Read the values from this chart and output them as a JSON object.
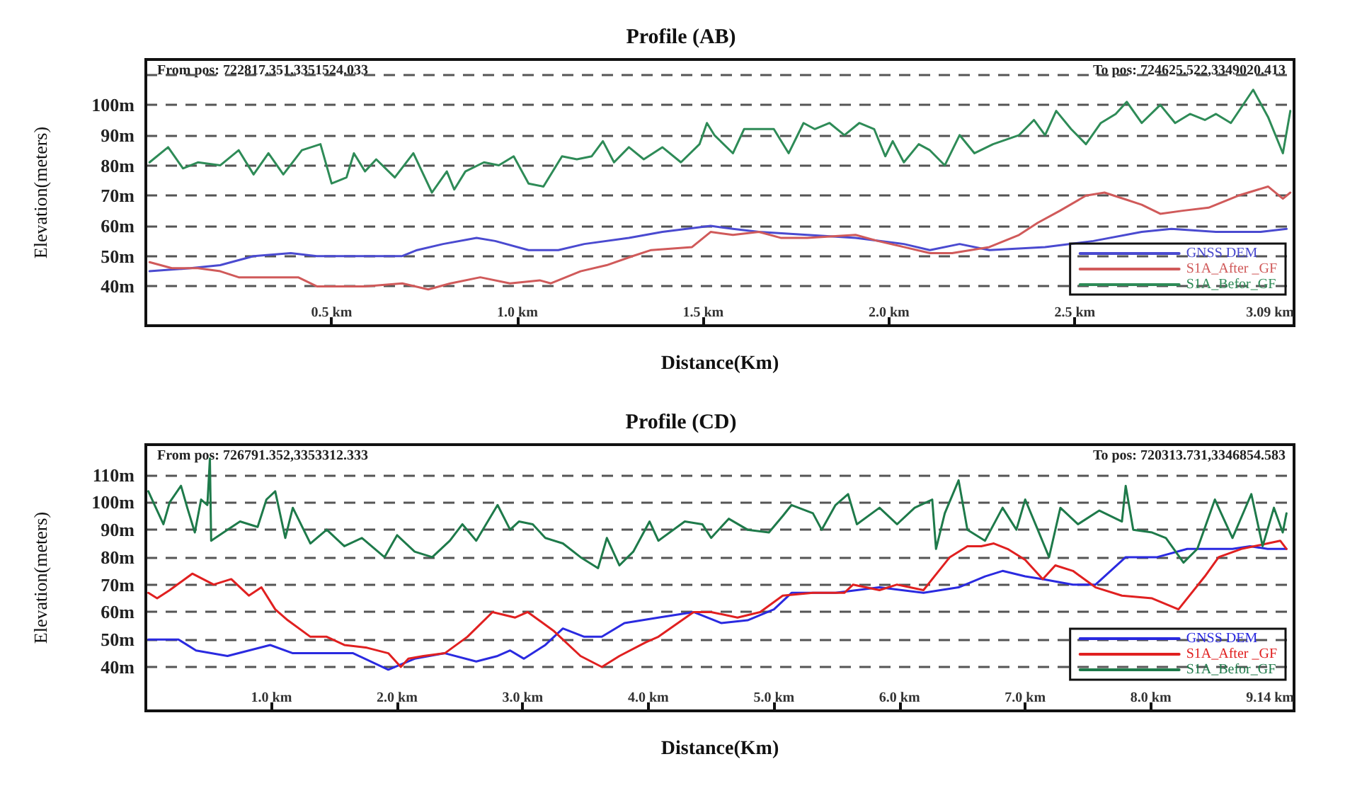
{
  "chart_data": [
    {
      "type": "line",
      "title": "Profile (AB)",
      "xlabel": "Distance(Km)",
      "ylabel": "Elevation(meters)",
      "annotations": [
        "From pos: 722817.351,3351524.033",
        "To pos: 724625.522,3349020.413"
      ],
      "xlim": [
        0,
        3.09
      ],
      "xticks": [
        {
          "value": 0.5,
          "label": "0.5 km"
        },
        {
          "value": 1.0,
          "label": "1.0 km"
        },
        {
          "value": 1.5,
          "label": "1.5 km"
        },
        {
          "value": 2.0,
          "label": "2.0 km"
        },
        {
          "value": 2.5,
          "label": "2.5 km"
        },
        {
          "value": 3.09,
          "label": "3.09 km"
        }
      ],
      "ylim": [
        27,
        115
      ],
      "yticks": [
        {
          "value": 40,
          "label": "40m"
        },
        {
          "value": 50,
          "label": "50m"
        },
        {
          "value": 60,
          "label": "60m"
        },
        {
          "value": 70,
          "label": "70m"
        },
        {
          "value": 80,
          "label": "80m"
        },
        {
          "value": 90,
          "label": "90m"
        },
        {
          "value": 100,
          "label": "100m"
        },
        {
          "value": 110,
          "label": null
        }
      ],
      "grid": "y",
      "legend": "bottom right",
      "series": [
        {
          "name": "GNSS DEM",
          "color": "#4a4ad0",
          "x": [
            0.01,
            0.12,
            0.2,
            0.29,
            0.39,
            0.46,
            0.59,
            0.69,
            0.73,
            0.8,
            0.89,
            0.94,
            1.03,
            1.11,
            1.18,
            1.3,
            1.39,
            1.52,
            1.58,
            1.65,
            1.78,
            1.91,
            2.04,
            2.11,
            2.19,
            2.27,
            2.42,
            2.55,
            2.68,
            2.76,
            2.88,
            3.0,
            3.07
          ],
          "values": [
            45,
            46,
            47,
            50,
            51,
            50,
            50,
            50,
            52,
            54,
            56,
            55,
            52,
            52,
            54,
            56,
            58,
            60,
            59,
            58,
            57,
            56,
            54,
            52,
            54,
            52,
            53,
            55,
            58,
            59,
            58,
            58,
            59
          ]
        },
        {
          "name": "S1A_After _GF",
          "color": "#d05a5a",
          "x": [
            0.01,
            0.07,
            0.14,
            0.2,
            0.25,
            0.33,
            0.41,
            0.46,
            0.59,
            0.69,
            0.76,
            0.82,
            0.9,
            0.98,
            1.06,
            1.09,
            1.17,
            1.24,
            1.31,
            1.36,
            1.47,
            1.52,
            1.58,
            1.65,
            1.71,
            1.78,
            1.91,
            1.97,
            2.04,
            2.11,
            2.17,
            2.27,
            2.35,
            2.4,
            2.46,
            2.53,
            2.58,
            2.63,
            2.68,
            2.73,
            2.79,
            2.86,
            2.94,
            3.02,
            3.06,
            3.08
          ],
          "values": [
            48,
            46,
            46,
            45,
            43,
            43,
            43,
            40,
            40,
            41,
            39,
            41,
            43,
            41,
            42,
            41,
            45,
            47,
            50,
            52,
            53,
            58,
            57,
            58,
            56,
            56,
            57,
            55,
            53,
            51,
            51,
            53,
            57,
            61,
            65,
            70,
            71,
            69,
            67,
            64,
            65,
            66,
            70,
            73,
            69,
            71
          ]
        },
        {
          "name": "S1A_Befor_GF",
          "color": "#2e8b57",
          "x": [
            0.01,
            0.06,
            0.1,
            0.14,
            0.2,
            0.25,
            0.29,
            0.33,
            0.37,
            0.42,
            0.47,
            0.5,
            0.54,
            0.56,
            0.59,
            0.62,
            0.67,
            0.72,
            0.77,
            0.81,
            0.83,
            0.86,
            0.91,
            0.95,
            0.99,
            1.03,
            1.07,
            1.12,
            1.16,
            1.2,
            1.23,
            1.26,
            1.3,
            1.34,
            1.39,
            1.44,
            1.49,
            1.51,
            1.53,
            1.58,
            1.61,
            1.69,
            1.73,
            1.77,
            1.8,
            1.84,
            1.88,
            1.92,
            1.96,
            1.99,
            2.01,
            2.04,
            2.08,
            2.11,
            2.15,
            2.19,
            2.23,
            2.28,
            2.35,
            2.39,
            2.42,
            2.45,
            2.49,
            2.53,
            2.57,
            2.61,
            2.64,
            2.68,
            2.73,
            2.77,
            2.81,
            2.85,
            2.88,
            2.92,
            2.98,
            3.02,
            3.06,
            3.08
          ],
          "values": [
            81,
            86,
            79,
            81,
            80,
            85,
            77,
            84,
            77,
            85,
            87,
            74,
            76,
            84,
            78,
            82,
            76,
            84,
            71,
            78,
            72,
            78,
            81,
            80,
            83,
            74,
            73,
            83,
            82,
            83,
            88,
            81,
            86,
            82,
            86,
            81,
            87,
            94,
            90,
            84,
            92,
            92,
            84,
            94,
            92,
            94,
            90,
            94,
            92,
            83,
            88,
            81,
            87,
            85,
            80,
            90,
            84,
            87,
            90,
            95,
            90,
            98,
            92,
            87,
            94,
            97,
            101,
            94,
            100,
            94,
            97,
            95,
            97,
            94,
            105,
            96,
            84,
            98
          ]
        }
      ]
    },
    {
      "type": "line",
      "title": "Profile (CD)",
      "xlabel": "Distance(Km)",
      "ylabel": "Elevation(meters)",
      "annotations": [
        "From pos: 726791.352,3353312.333",
        "To pos: 720313.731,3346854.583"
      ],
      "xlim": [
        0,
        9.14
      ],
      "xticks": [
        {
          "value": 1.0,
          "label": "1.0 km"
        },
        {
          "value": 2.0,
          "label": "2.0 km"
        },
        {
          "value": 3.0,
          "label": "3.0 km"
        },
        {
          "value": 4.0,
          "label": "4.0 km"
        },
        {
          "value": 5.0,
          "label": "5.0 km"
        },
        {
          "value": 6.0,
          "label": "6.0 km"
        },
        {
          "value": 7.0,
          "label": "7.0 km"
        },
        {
          "value": 8.0,
          "label": "8.0 km"
        },
        {
          "value": 9.14,
          "label": "9.14 km"
        }
      ],
      "ylim": [
        24,
        121
      ],
      "yticks": [
        {
          "value": 40,
          "label": "40m"
        },
        {
          "value": 50,
          "label": "50m"
        },
        {
          "value": 60,
          "label": "60m"
        },
        {
          "value": 70,
          "label": "70m"
        },
        {
          "value": 80,
          "label": "80m"
        },
        {
          "value": 90,
          "label": "90m"
        },
        {
          "value": 100,
          "label": "100m"
        },
        {
          "value": 110,
          "label": "110m"
        }
      ],
      "grid": "y",
      "legend": "bottom right",
      "series": [
        {
          "name": "GNSS DEM",
          "color": "#2a2ae0",
          "x": [
            0.02,
            0.26,
            0.4,
            0.65,
            0.82,
            0.99,
            1.17,
            1.44,
            1.65,
            1.93,
            2.14,
            2.38,
            2.63,
            2.8,
            2.9,
            3.01,
            3.18,
            3.32,
            3.49,
            3.63,
            3.81,
            4.08,
            4.36,
            4.58,
            4.79,
            5.0,
            5.14,
            5.49,
            5.84,
            6.19,
            6.47,
            6.68,
            6.82,
            7.0,
            7.14,
            7.38,
            7.56,
            7.8,
            8.05,
            8.29,
            8.65,
            8.79,
            8.93,
            9.08
          ],
          "values": [
            50,
            50,
            46,
            44,
            46,
            48,
            45,
            45,
            45,
            39,
            43,
            45,
            42,
            44,
            46,
            43,
            48,
            54,
            51,
            51,
            56,
            58,
            60,
            56,
            57,
            61,
            67,
            67,
            69,
            67,
            69,
            73,
            75,
            73,
            72,
            70,
            70,
            80,
            80,
            83,
            83,
            84,
            83,
            83
          ]
        },
        {
          "name": "S1A_After _GF",
          "color": "#e02020",
          "x": [
            0.02,
            0.09,
            0.19,
            0.37,
            0.54,
            0.68,
            0.82,
            0.92,
            1.03,
            1.13,
            1.31,
            1.44,
            1.58,
            1.76,
            1.93,
            2.03,
            2.09,
            2.21,
            2.38,
            2.56,
            2.76,
            2.94,
            3.04,
            3.25,
            3.46,
            3.63,
            3.77,
            3.98,
            4.08,
            4.36,
            4.5,
            4.71,
            4.89,
            5.07,
            5.31,
            5.56,
            5.63,
            5.84,
            5.98,
            6.19,
            6.33,
            6.4,
            6.54,
            6.65,
            6.75,
            6.86,
            7.0,
            7.14,
            7.24,
            7.38,
            7.56,
            7.77,
            8.01,
            8.22,
            8.43,
            8.54,
            8.72,
            8.93,
            9.03,
            9.08
          ],
          "values": [
            67,
            65,
            68,
            74,
            70,
            72,
            66,
            69,
            61,
            57,
            51,
            51,
            48,
            47,
            45,
            40,
            43,
            44,
            45,
            51,
            60,
            58,
            60,
            53,
            44,
            40,
            44,
            49,
            51,
            60,
            60,
            58,
            60,
            66,
            67,
            67,
            70,
            68,
            70,
            68,
            76,
            80,
            84,
            84,
            85,
            83,
            79,
            72,
            77,
            75,
            69,
            66,
            65,
            61,
            73,
            80,
            83,
            85,
            86,
            83
          ]
        },
        {
          "name": "S1A_Befor_GF",
          "color": "#1e7a4a",
          "x": [
            0.02,
            0.07,
            0.14,
            0.19,
            0.28,
            0.33,
            0.39,
            0.44,
            0.49,
            0.51,
            0.52,
            0.65,
            0.75,
            0.89,
            0.96,
            1.03,
            1.11,
            1.17,
            1.31,
            1.44,
            1.58,
            1.72,
            1.9,
            2.0,
            2.14,
            2.28,
            2.42,
            2.52,
            2.63,
            2.8,
            2.9,
            2.97,
            3.08,
            3.18,
            3.32,
            3.46,
            3.6,
            3.67,
            3.77,
            3.88,
            4.01,
            4.08,
            4.29,
            4.43,
            4.5,
            4.64,
            4.79,
            4.96,
            5.07,
            5.14,
            5.31,
            5.38,
            5.49,
            5.59,
            5.66,
            5.84,
            5.98,
            6.12,
            6.26,
            6.29,
            6.36,
            6.47,
            6.54,
            6.68,
            6.82,
            6.93,
            7.0,
            7.1,
            7.19,
            7.28,
            7.42,
            7.59,
            7.77,
            7.8,
            7.86,
            8.01,
            8.12,
            8.26,
            8.37,
            8.51,
            8.65,
            8.8,
            8.89,
            8.98,
            9.05,
            9.08
          ],
          "values": [
            104,
            99,
            92,
            100,
            106,
            98,
            89,
            101,
            99,
            116,
            86,
            90,
            93,
            91,
            101,
            104,
            87,
            98,
            85,
            90,
            84,
            87,
            80,
            88,
            82,
            80,
            86,
            92,
            86,
            99,
            90,
            93,
            92,
            87,
            85,
            80,
            76,
            87,
            77,
            82,
            93,
            86,
            93,
            92,
            87,
            94,
            90,
            89,
            95,
            99,
            96,
            90,
            99,
            103,
            92,
            98,
            92,
            98,
            101,
            83,
            96,
            108,
            90,
            86,
            98,
            90,
            101,
            90,
            80,
            98,
            92,
            97,
            93,
            106,
            90,
            89,
            87,
            78,
            83,
            101,
            87,
            103,
            84,
            98,
            89,
            96
          ]
        }
      ]
    }
  ]
}
